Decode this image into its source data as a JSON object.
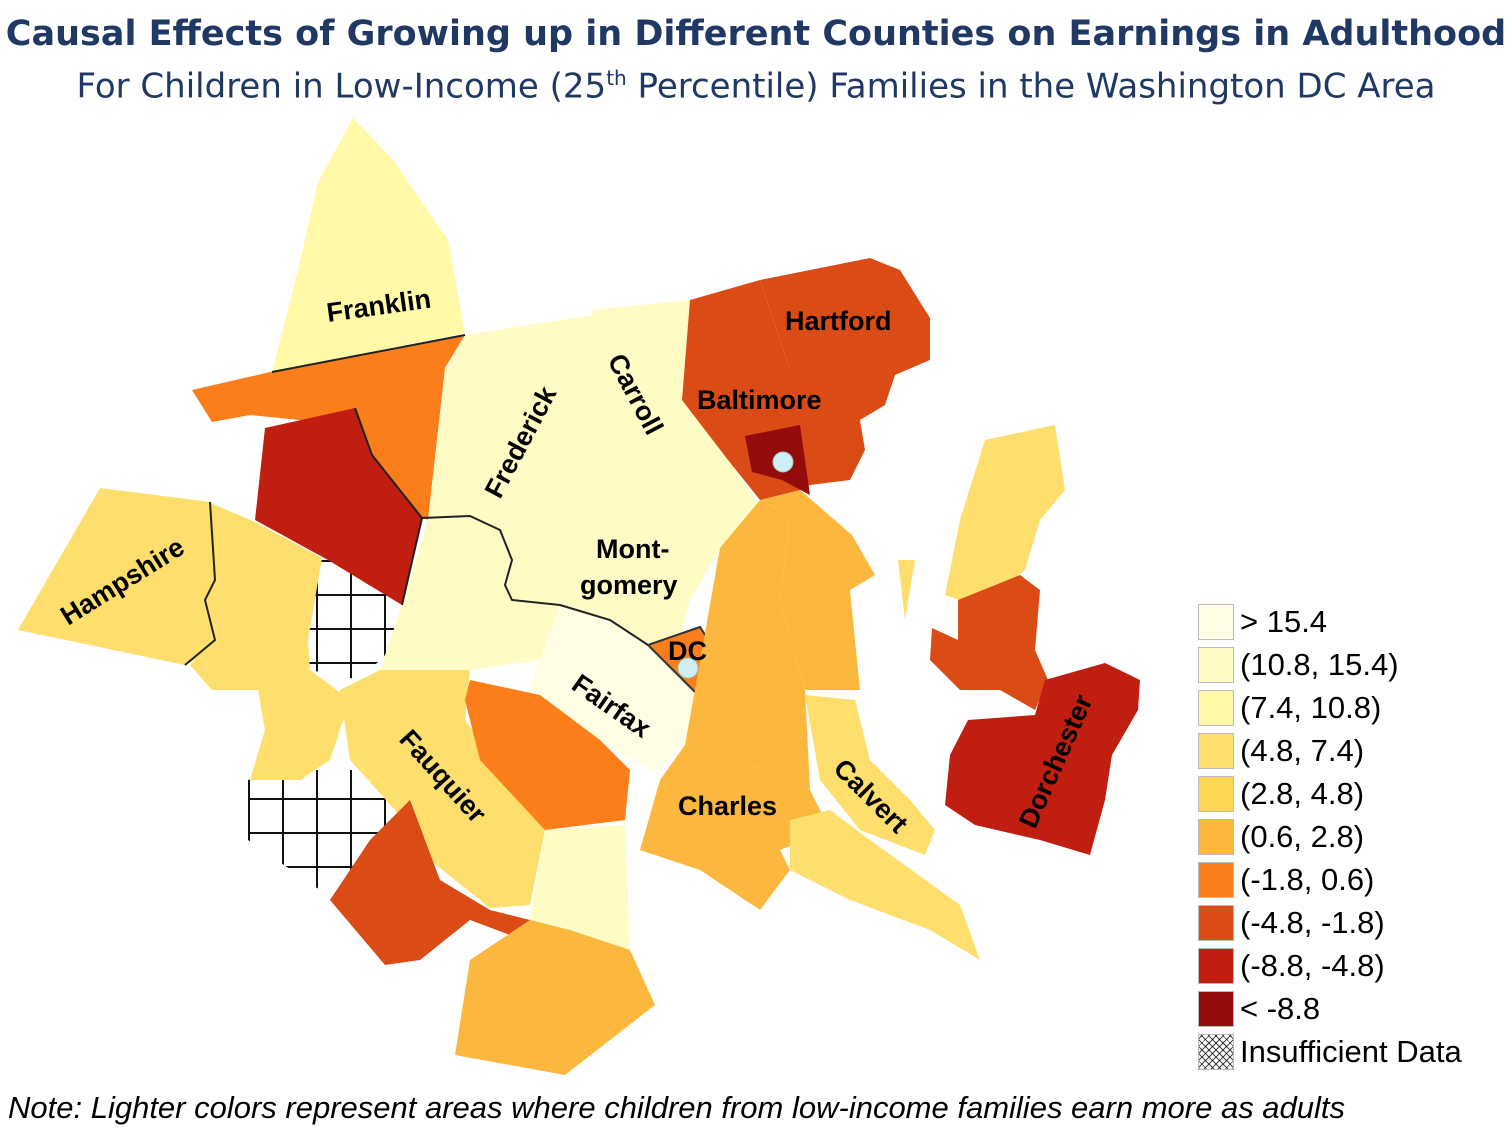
{
  "title": "Causal Effects of Growing up in Different Counties on Earnings in Adulthood",
  "subtitle": {
    "prefix": "For Children in Low-Income (25",
    "sup": "th",
    "suffix": " Percentile) Families in the Washington DC Area"
  },
  "colors": {
    "gt_15_4": "#fffde4",
    "c_10_8_15_4": "#fffbc5",
    "c_7_4_10_8": "#fff9a8",
    "c_4_8_7_4": "#fede6c",
    "c_2_8_4_8": "#fdd653",
    "c_0_6_2_8": "#fcb83e",
    "c_m1_8_0_6": "#fb7e1b",
    "c_m4_8_m1_8": "#db4b16",
    "c_m8_8_m4_8": "#bf1e10",
    "lt_m8_8": "#930b0b"
  },
  "legend": {
    "items": [
      {
        "label": "> 15.4",
        "color": "#fffde4"
      },
      {
        "label": "(10.8, 15.4)",
        "color": "#fffbc5"
      },
      {
        "label": "(7.4, 10.8)",
        "color": "#fff9a8"
      },
      {
        "label": "(4.8, 7.4)",
        "color": "#fede6c"
      },
      {
        "label": "(2.8, 4.8)",
        "color": "#fdd653"
      },
      {
        "label": "(0.6, 2.8)",
        "color": "#fcb83e"
      },
      {
        "label": "(-1.8, 0.6)",
        "color": "#fb7e1b"
      },
      {
        "label": "(-4.8, -1.8)",
        "color": "#db4b16"
      },
      {
        "label": "(-8.8, -4.8)",
        "color": "#bf1e10"
      },
      {
        "label": "< -8.8",
        "color": "#930b0b"
      }
    ],
    "insufficient": "Insufficient Data"
  },
  "labels": {
    "franklin": "Franklin",
    "frederick": "Frederick",
    "carroll": "Carroll",
    "hartford": "Hartford",
    "baltimore": "Baltimore",
    "hampshire": "Hampshire",
    "montgomery_1": "Mont-",
    "montgomery_2": "gomery",
    "dc": "DC",
    "fairfax": "Fairfax",
    "fauquier": "Fauquier",
    "charles": "Charles",
    "calvert": "Calvert",
    "dorchester": "Dorchester"
  },
  "note": "Note: Lighter colors represent areas where children from low-income families earn more as adults"
}
